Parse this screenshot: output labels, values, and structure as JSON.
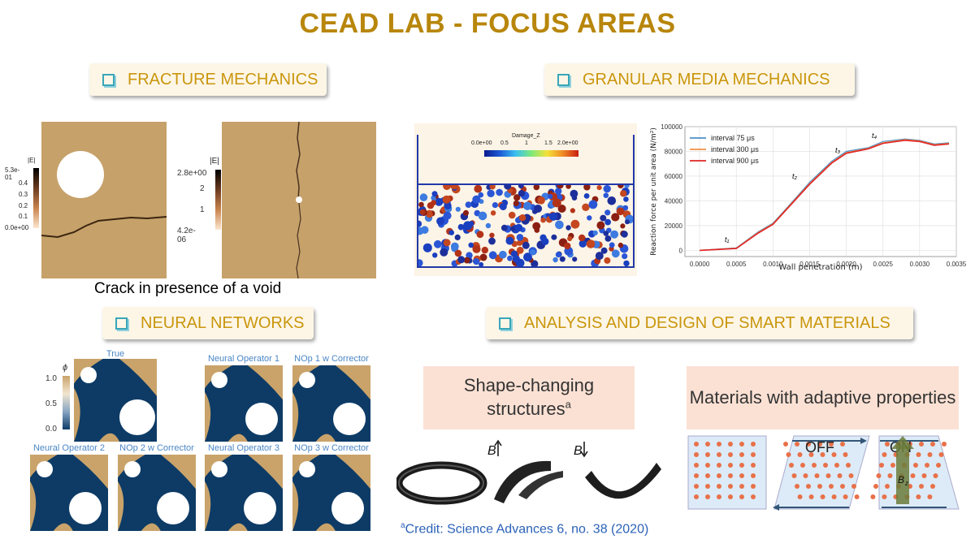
{
  "title": "CEAD LAB - FOCUS AREAS",
  "sections": {
    "fracture": "FRACTURE MECHANICS",
    "granular": "GRANULAR MEDIA MECHANICS",
    "neural": "NEURAL NETWORKS",
    "smart": "ANALYSIS AND DESIGN OF SMART MATERIALS"
  },
  "fracture": {
    "caption": "Crack in presence of a void",
    "colorbar1": {
      "label": "|E|",
      "ticks": [
        "5.3e-01",
        "0.4",
        "0.3",
        "0.2",
        "0.1",
        "0.0e+00"
      ]
    },
    "colorbar2": {
      "label": "|E|",
      "ticks": [
        "2.8e+00",
        "2",
        "1",
        "4.2e-06"
      ]
    }
  },
  "granular": {
    "sim_colorbar": {
      "label": "Damage_Z",
      "ticks": [
        "0.0e+00",
        "0.5",
        "1",
        "1.5",
        "2.0e+00"
      ]
    },
    "chart_data": {
      "type": "line",
      "xlabel": "Wall penetration (m)",
      "ylabel": "Reaction force per unit area (N/m²)",
      "xlim": [
        -0.0002,
        0.0035
      ],
      "ylim": [
        -5000,
        100000
      ],
      "xticks": [
        "0.0000",
        "0.0005",
        "0.0010",
        "0.0015",
        "0.0020",
        "0.0025",
        "0.0030",
        "0.0035"
      ],
      "yticks": [
        "0",
        "20000",
        "40000",
        "60000",
        "80000",
        "100000"
      ],
      "legend_position": "top-left",
      "annotations": [
        "t₁",
        "t₂",
        "t₃",
        "t₄"
      ],
      "series": [
        {
          "name": "interval 75 μs",
          "color": "#4C8FC7",
          "x": [
            0.0,
            0.0005,
            0.0008,
            0.001,
            0.0012,
            0.0015,
            0.0018,
            0.002,
            0.0023,
            0.0025,
            0.0028,
            0.003,
            0.0032,
            0.0034
          ],
          "y": [
            0,
            2000,
            15000,
            22000,
            35000,
            55000,
            72000,
            80000,
            83000,
            88000,
            90000,
            89000,
            86000,
            87000
          ]
        },
        {
          "name": "interval 300 μs",
          "color": "#F28E44",
          "x": [
            0.0,
            0.0005,
            0.0008,
            0.001,
            0.0012,
            0.0015,
            0.0018,
            0.002,
            0.0023,
            0.0025,
            0.0028,
            0.003,
            0.0032,
            0.0034
          ],
          "y": [
            0,
            1800,
            14500,
            21500,
            34500,
            54000,
            71000,
            79000,
            82500,
            87000,
            89500,
            88500,
            85500,
            86500
          ]
        },
        {
          "name": "interval 900 μs",
          "color": "#E02424",
          "x": [
            0.0,
            0.0005,
            0.0008,
            0.001,
            0.0012,
            0.0015,
            0.0018,
            0.002,
            0.0023,
            0.0025,
            0.0028,
            0.003,
            0.0032,
            0.0034
          ],
          "y": [
            0,
            1500,
            14000,
            21000,
            34000,
            53500,
            70500,
            78500,
            82000,
            86500,
            89000,
            88000,
            85000,
            86000
          ]
        }
      ]
    }
  },
  "neural": {
    "colorbar": {
      "label": "ϕ",
      "ticks": [
        "1.0",
        "0.5",
        "0.0"
      ]
    },
    "panels": [
      "True",
      "Neural Operator 1",
      "NOp 1 w Corrector",
      "Neural Operator 2",
      "NOp 2 w Corrector",
      "Neural Operator 3",
      "NOp 3 w Corrector"
    ]
  },
  "smart": {
    "shape_title": "Shape-changing structures",
    "shape_sup": "a",
    "adaptive_title": "Materials with adaptive properties",
    "b_label": "B",
    "off_label": "OFF",
    "on_label": "ON",
    "bz_label": "B",
    "bz_sub": "z",
    "credit_sup": "a",
    "credit": "Credit: Science Advances 6, no. 38 (2020)"
  },
  "colors": {
    "title": "#B8860B",
    "section_text": "#C9960C",
    "sand": "#C6A16A",
    "navy": "#0D3B66",
    "link": "#2B62B7"
  }
}
